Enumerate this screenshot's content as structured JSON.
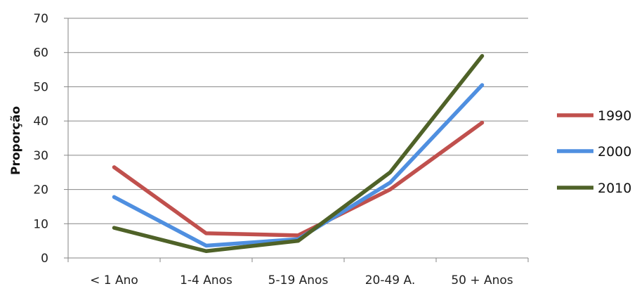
{
  "chart_data": {
    "type": "line",
    "title": "",
    "xlabel": "",
    "ylabel": "Proporção",
    "ylim": [
      0,
      70
    ],
    "yticks": [
      0,
      10,
      20,
      30,
      40,
      50,
      60,
      70
    ],
    "grid": true,
    "legend_position": "right",
    "categories": [
      "< 1 Ano",
      "1-4 Anos",
      "5-19 Anos",
      "20-49 A.",
      "50 + Anos"
    ],
    "series": [
      {
        "name": "1990",
        "color": "#c0504d",
        "values": [
          26.5,
          7.2,
          6.6,
          20.0,
          39.5
        ]
      },
      {
        "name": "2000",
        "color": "#4f8fe0",
        "values": [
          17.8,
          3.6,
          5.5,
          22.0,
          50.5
        ]
      },
      {
        "name": "2010",
        "color": "#4f6228",
        "values": [
          8.8,
          2.0,
          5.0,
          25.0,
          59.0
        ]
      }
    ]
  }
}
